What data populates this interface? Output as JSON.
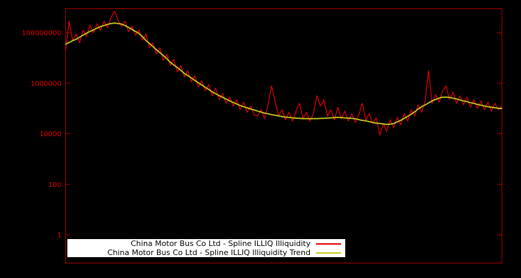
{
  "chart": {
    "colors": {
      "background": "#000000",
      "frame": "#a40000",
      "tick_text": "#e60000",
      "series_red": "#e60000",
      "trend_yellow": "#c8c820",
      "legend_background": "#ffffff",
      "legend_text": "#000000"
    }
  },
  "legend": {
    "entries": [
      {
        "label": "China Motor Bus Co Ltd - Spline ILLIQ Illiquidity",
        "color": "#e60000"
      },
      {
        "label": "China Motor Bus Co Ltd - Spline ILLIQ Illiquidity Trend",
        "color": "#c8c820"
      }
    ]
  },
  "chart_data": {
    "type": "line",
    "title": "",
    "xlabel": "",
    "ylabel": "",
    "y_axis": {
      "scale": "log10",
      "tick_values": [
        1,
        100,
        10000,
        1000000,
        100000000
      ],
      "tick_labels": [
        "1",
        "100",
        "10000",
        "1000000",
        "100000000"
      ],
      "range_log10": [
        -1.1,
        9.0
      ]
    },
    "x_axis": {
      "tick_labels": [],
      "note": "no visible x tick labels; series sampled at 126 evenly spaced points"
    },
    "legend_position": "bottom-center",
    "grid": false,
    "series": [
      {
        "name": "China Motor Bus Co Ltd - Spline ILLIQ Illiquidity",
        "color": "#e60000",
        "width": 1.2,
        "log10_values": [
          7.3,
          8.45,
          7.7,
          7.95,
          7.6,
          8.1,
          7.85,
          8.3,
          8.0,
          8.35,
          8.1,
          8.45,
          8.2,
          8.6,
          8.85,
          8.5,
          8.25,
          8.45,
          8.05,
          8.25,
          7.9,
          8.1,
          7.7,
          7.95,
          7.4,
          7.6,
          7.15,
          7.4,
          6.9,
          7.15,
          6.7,
          6.95,
          6.45,
          6.7,
          6.25,
          6.5,
          6.05,
          6.3,
          5.85,
          6.1,
          5.7,
          5.95,
          5.5,
          5.8,
          5.35,
          5.6,
          5.2,
          5.45,
          5.1,
          5.35,
          4.95,
          5.25,
          4.85,
          5.1,
          4.75,
          4.7,
          4.95,
          4.6,
          5.15,
          5.9,
          5.3,
          4.7,
          4.95,
          4.55,
          4.85,
          4.5,
          4.9,
          5.2,
          4.6,
          4.85,
          4.5,
          4.8,
          5.5,
          5.1,
          5.35,
          4.7,
          4.95,
          4.55,
          5.05,
          4.6,
          4.9,
          4.5,
          4.8,
          4.45,
          4.75,
          5.2,
          4.55,
          4.8,
          4.4,
          4.65,
          3.95,
          4.4,
          4.1,
          4.55,
          4.25,
          4.65,
          4.35,
          4.8,
          4.5,
          4.95,
          4.7,
          5.15,
          4.85,
          5.3,
          6.5,
          5.2,
          5.55,
          5.25,
          5.7,
          5.9,
          5.35,
          5.65,
          5.2,
          5.5,
          5.15,
          5.45,
          5.05,
          5.35,
          5.0,
          5.3,
          4.95,
          5.25,
          4.9,
          5.2,
          4.95,
          5.1
        ]
      },
      {
        "name": "China Motor Bus Co Ltd - Spline ILLIQ Illiquidity Trend",
        "color": "#c8c820",
        "width": 1.8,
        "log10_values": [
          7.55,
          7.61,
          7.68,
          7.74,
          7.82,
          7.9,
          7.98,
          8.05,
          8.11,
          8.18,
          8.24,
          8.28,
          8.33,
          8.36,
          8.38,
          8.36,
          8.34,
          8.28,
          8.21,
          8.13,
          8.05,
          7.97,
          7.85,
          7.69,
          7.57,
          7.45,
          7.33,
          7.21,
          7.09,
          6.97,
          6.83,
          6.72,
          6.62,
          6.51,
          6.39,
          6.3,
          6.21,
          6.11,
          6.02,
          5.93,
          5.84,
          5.75,
          5.66,
          5.58,
          5.51,
          5.44,
          5.37,
          5.3,
          5.24,
          5.18,
          5.12,
          5.07,
          5.03,
          4.98,
          4.94,
          4.9,
          4.86,
          4.82,
          4.79,
          4.76,
          4.73,
          4.71,
          4.68,
          4.66,
          4.65,
          4.63,
          4.62,
          4.61,
          4.6,
          4.6,
          4.6,
          4.6,
          4.6,
          4.61,
          4.61,
          4.62,
          4.63,
          4.64,
          4.65,
          4.64,
          4.63,
          4.62,
          4.61,
          4.59,
          4.56,
          4.53,
          4.51,
          4.48,
          4.45,
          4.42,
          4.41,
          4.39,
          4.37,
          4.38,
          4.41,
          4.47,
          4.53,
          4.61,
          4.69,
          4.77,
          4.87,
          4.98,
          5.07,
          5.14,
          5.22,
          5.3,
          5.36,
          5.41,
          5.45,
          5.45,
          5.44,
          5.41,
          5.38,
          5.34,
          5.3,
          5.27,
          5.23,
          5.2,
          5.16,
          5.13,
          5.1,
          5.07,
          5.05,
          5.03,
          5.01,
          5.0
        ]
      }
    ]
  }
}
